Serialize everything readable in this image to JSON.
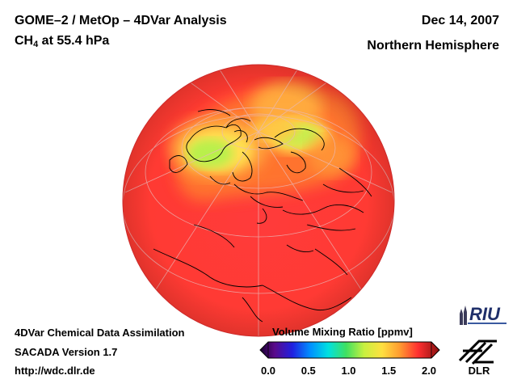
{
  "header": {
    "title_line1": "GOME–2 / MetOp – 4DVar Analysis",
    "species": "CH",
    "species_sub": "4",
    "level": " at 55.4 hPa",
    "date": "Dec 14, 2007",
    "region": "Northern Hemisphere"
  },
  "footer": {
    "line1": "4DVar Chemical Data Assimilation",
    "line2": "SACADA Version 1.7",
    "line3": "http://wdc.dlr.de"
  },
  "colorbar": {
    "title": "Volume Mixing Ratio [ppmv]",
    "ticks": [
      "0.0",
      "0.5",
      "1.0",
      "1.5",
      "2.0"
    ],
    "range": [
      0.0,
      2.0
    ]
  },
  "logos": {
    "riu": "RIU",
    "dlr": "DLR"
  },
  "colors": {
    "background_field": "#ff3a3a",
    "enhanced_field": "#ffd54a",
    "low_field": "#b8f04a",
    "coastline": "#000000"
  }
}
